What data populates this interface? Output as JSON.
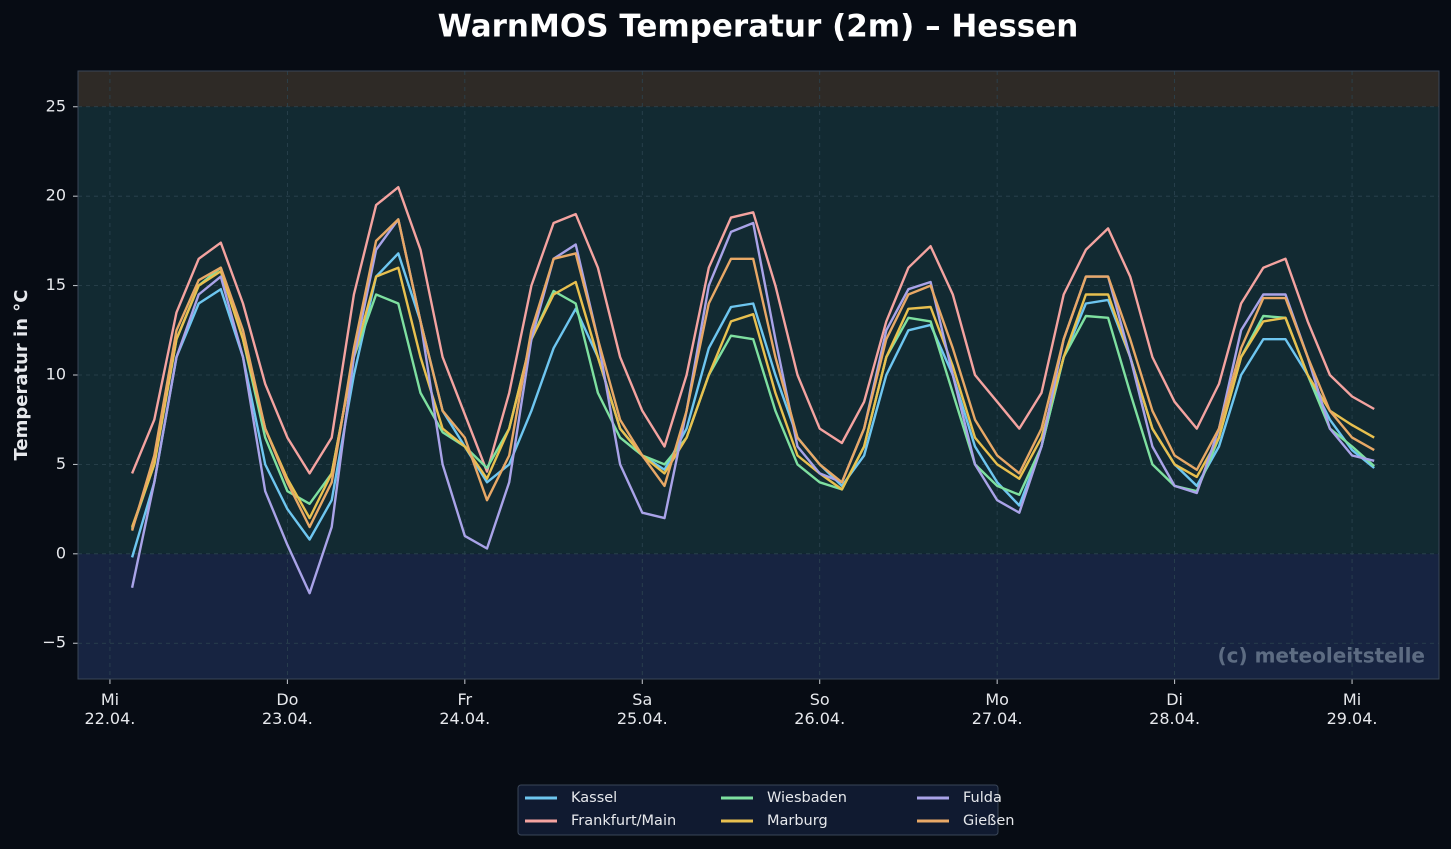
{
  "chart_data": {
    "type": "line",
    "title": "WarnMOS Temperatur (2m) – Hessen",
    "ylabel": "Temperatur in °C",
    "annotation": "(c) meteoleitstelle",
    "x": [
      0.125,
      0.25,
      0.375,
      0.5,
      0.625,
      0.75,
      0.875,
      1.0,
      1.125,
      1.25,
      1.375,
      1.5,
      1.625,
      1.75,
      1.875,
      2.0,
      2.125,
      2.25,
      2.375,
      2.5,
      2.625,
      2.75,
      2.875,
      3.0,
      3.125,
      3.25,
      3.375,
      3.5,
      3.625,
      3.75,
      3.875,
      4.0,
      4.125,
      4.25,
      4.375,
      4.5,
      4.625,
      4.75,
      4.875,
      5.0,
      5.125,
      5.25,
      5.375,
      5.5,
      5.625,
      5.75,
      5.875,
      6.0,
      6.125,
      6.25,
      6.375,
      6.5,
      6.625,
      6.75,
      6.875,
      7.0,
      7.125
    ],
    "xlim": [
      -0.18,
      7.49
    ],
    "xticks": [
      {
        "value": 0,
        "label": "Mi\n22.04."
      },
      {
        "value": 1,
        "label": "Do\n23.04."
      },
      {
        "value": 2,
        "label": "Fr\n24.04."
      },
      {
        "value": 3,
        "label": "Sa\n25.04."
      },
      {
        "value": 4,
        "label": "So\n26.04."
      },
      {
        "value": 5,
        "label": "Mo\n27.04."
      },
      {
        "value": 6,
        "label": "Di\n28.04."
      },
      {
        "value": 7,
        "label": "Mi\n29.04."
      }
    ],
    "ylim": [
      -7,
      27
    ],
    "yticks": [
      {
        "value": -5,
        "label": "−5"
      },
      0,
      5,
      10,
      15,
      20,
      25
    ],
    "grid": true,
    "bands": [
      {
        "from": 25,
        "to": 27,
        "color": "#2e2a26"
      },
      {
        "from": 0,
        "to": 25,
        "color": "#122a32"
      },
      {
        "from": -7,
        "to": 0,
        "color": "#172441"
      }
    ],
    "legend": "bottom",
    "series": [
      {
        "name": "Kassel",
        "color": "#6ec6f0",
        "values": [
          -0.2,
          4,
          11,
          14,
          14.8,
          11,
          5,
          2.5,
          0.8,
          3,
          10,
          15.5,
          16.8,
          13,
          8,
          6,
          4,
          5,
          8,
          11.5,
          13.7,
          11,
          7,
          5.5,
          4.7,
          7,
          11.5,
          13.8,
          14,
          10,
          6.5,
          5,
          3.8,
          5.5,
          10,
          12.5,
          12.8,
          10,
          6,
          4,
          2.7,
          6,
          11,
          14,
          14.2,
          11,
          7,
          5,
          3.8,
          6,
          10,
          12,
          12,
          10,
          7.5,
          5.8,
          4.8
        ]
      },
      {
        "name": "Frankfurt/Main",
        "color": "#f4a3a0",
        "values": [
          4.5,
          7.5,
          13.5,
          16.5,
          17.4,
          14,
          9.5,
          6.5,
          4.5,
          6.5,
          14.5,
          19.5,
          20.5,
          17,
          11,
          7.8,
          4.6,
          9,
          15,
          18.5,
          19,
          16,
          11,
          8,
          6,
          10,
          16,
          18.8,
          19.1,
          15,
          10,
          7,
          6.2,
          8.5,
          13,
          16,
          17.2,
          14.5,
          10,
          8.5,
          7,
          9,
          14.5,
          17,
          18.2,
          15.5,
          11,
          8.5,
          7,
          9.5,
          14,
          16,
          16.5,
          13,
          10,
          8.8,
          8.1
        ]
      },
      {
        "name": "Wiesbaden",
        "color": "#7ee0a0",
        "values": [
          1.4,
          5,
          12,
          15,
          16,
          12,
          6.5,
          3.5,
          2.8,
          4.5,
          11,
          14.5,
          14,
          9,
          6.8,
          6,
          4.8,
          7,
          12,
          14.7,
          14,
          9,
          6.5,
          5.5,
          5,
          6.5,
          10,
          12.2,
          12,
          8,
          5,
          4,
          3.6,
          6,
          11,
          13.2,
          13,
          9,
          5,
          3.8,
          3.3,
          6,
          11,
          13.3,
          13.2,
          9,
          5,
          3.8,
          3.5,
          6.5,
          11,
          13.3,
          13.2,
          10,
          7,
          6,
          4.9
        ]
      },
      {
        "name": "Marburg",
        "color": "#e8c04f",
        "values": [
          1.5,
          5,
          12,
          15,
          15.8,
          12,
          7,
          4.2,
          2,
          4.5,
          11,
          15.5,
          16,
          11,
          7,
          6,
          4.2,
          7,
          12,
          14.5,
          15.2,
          11,
          7,
          5.5,
          4.5,
          6.5,
          10,
          13,
          13.4,
          9,
          5.5,
          4.5,
          3.6,
          6,
          11,
          13.7,
          13.8,
          10.5,
          6.5,
          5,
          4.2,
          6.5,
          11,
          14.5,
          14.5,
          11,
          7,
          5,
          4.3,
          6.5,
          11,
          13,
          13.2,
          10,
          8,
          7.2,
          6.5
        ]
      },
      {
        "name": "Fulda",
        "color": "#a9a3e8",
        "values": [
          -1.9,
          4,
          11,
          14.5,
          15.5,
          11,
          3.5,
          0.5,
          -2.2,
          1.5,
          11,
          17,
          18.7,
          13,
          5,
          1,
          0.3,
          4,
          12,
          16.5,
          17.3,
          12,
          5,
          2.3,
          2,
          8,
          15,
          18,
          18.5,
          12,
          6,
          4.5,
          4,
          7,
          12.5,
          14.8,
          15.2,
          10,
          5,
          3,
          2.3,
          6,
          12,
          15.5,
          15.5,
          11,
          6,
          3.8,
          3.4,
          7,
          12.5,
          14.5,
          14.5,
          11,
          7,
          5.5,
          5.2
        ]
      },
      {
        "name": "Gießen",
        "color": "#e8a866",
        "values": [
          1.3,
          5.5,
          12.5,
          15.3,
          16,
          12.5,
          7,
          4,
          1.5,
          4,
          11.5,
          17.5,
          18.7,
          13,
          8,
          6.5,
          3,
          5.5,
          12.5,
          16.5,
          16.8,
          12,
          7.5,
          5.5,
          3.8,
          8,
          14,
          16.5,
          16.5,
          11,
          6.5,
          5,
          4,
          7,
          12,
          14.5,
          15,
          11.5,
          7.5,
          5.5,
          4.5,
          7,
          12,
          15.5,
          15.5,
          12,
          8,
          5.5,
          4.7,
          7,
          11.5,
          14.3,
          14.3,
          11,
          8,
          6.5,
          5.8
        ]
      }
    ]
  }
}
